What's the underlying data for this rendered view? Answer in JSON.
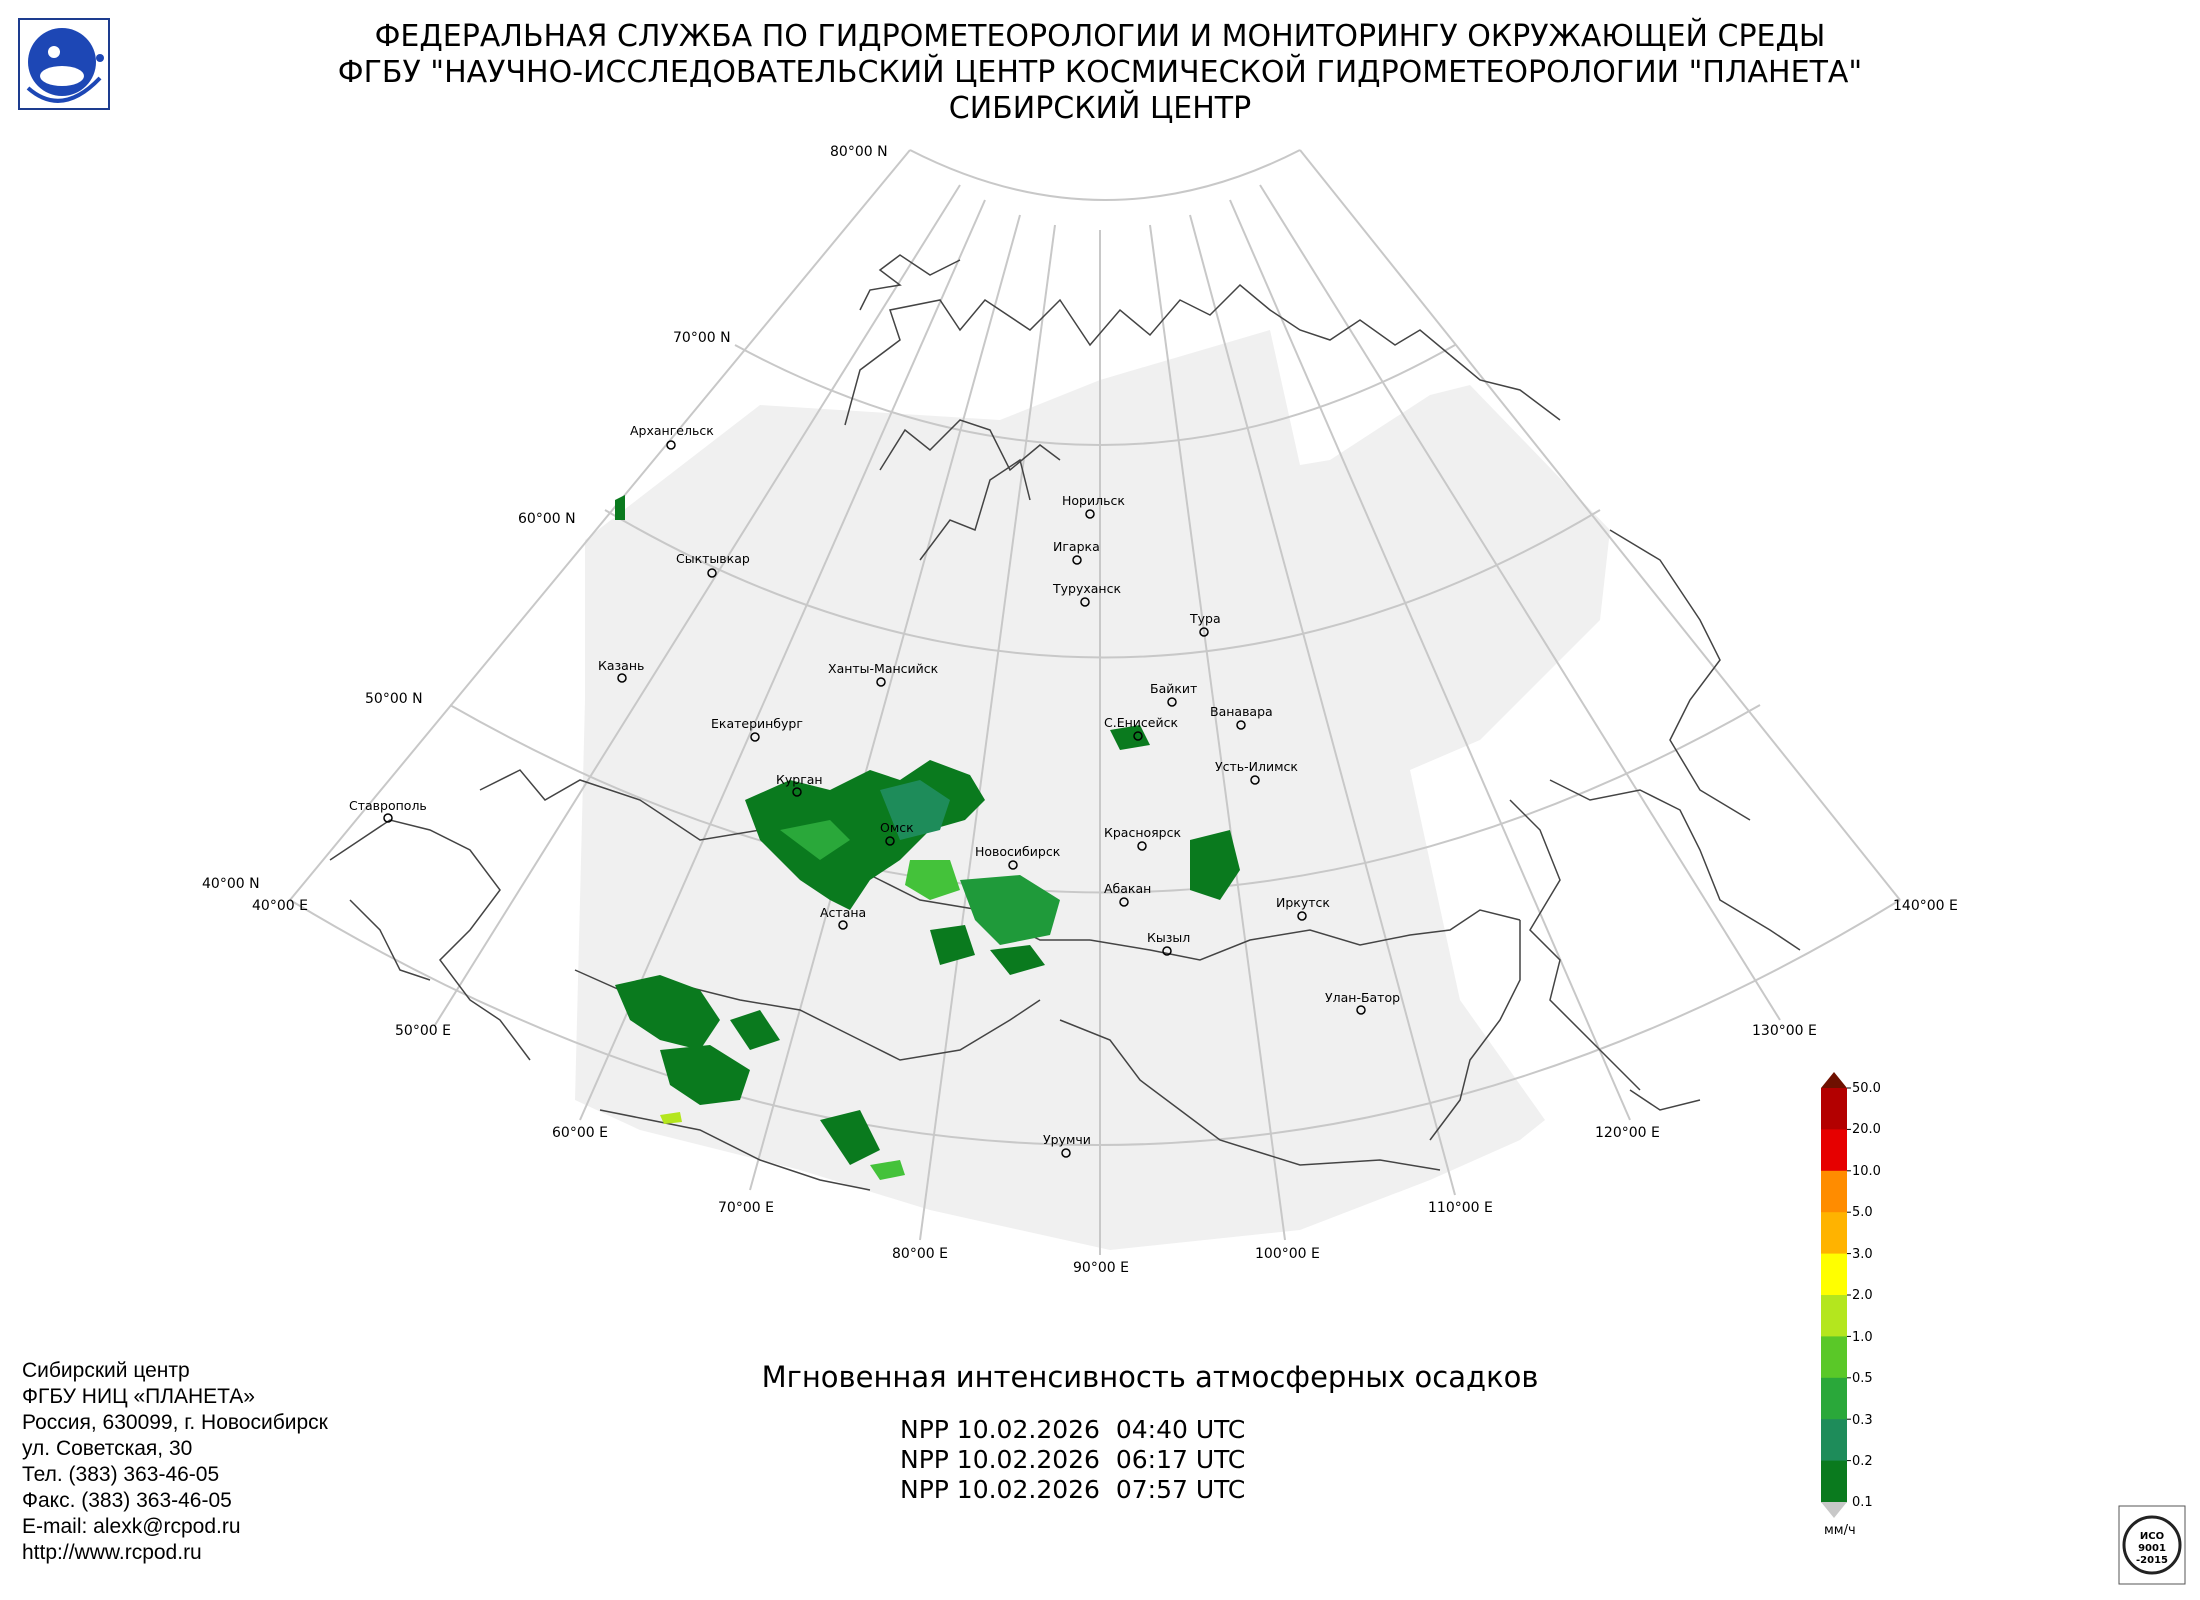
{
  "header": {
    "line1": "ФЕДЕРАЛЬНАЯ СЛУЖБА ПО ГИДРОМЕТЕОРОЛОГИИ И МОНИТОРИНГУ ОКРУЖАЮЩЕЙ СРЕДЫ",
    "line2": "ФГБУ \"НАУЧНО-ИССЛЕДОВАТЕЛЬСКИЙ ЦЕНТР КОСМИЧЕСКОЙ ГИДРОМЕТЕОРОЛОГИИ \"ПЛАНЕТА\"",
    "line3": "СИБИРСКИЙ ЦЕНТР",
    "logo_icon": "roshydromet-logo"
  },
  "map": {
    "latitude_labels": [
      "80°00 N",
      "70°00 N",
      "60°00 N",
      "50°00 N",
      "40°00 N"
    ],
    "longitude_labels": [
      "40°00 E",
      "50°00 E",
      "60°00 E",
      "70°00 E",
      "80°00 E",
      "90°00 E",
      "100°00 E",
      "110°00 E",
      "120°00 E",
      "130°00 E",
      "140°00 E"
    ],
    "cities": [
      "Архангельск",
      "Сыктывкар",
      "Казань",
      "Екатеринбург",
      "Ставрополь",
      "Курган",
      "Омск",
      "Астана",
      "Ханты-Мансийск",
      "Норильск",
      "Игарка",
      "Туруханск",
      "Тура",
      "Байкит",
      "С.Енисейск",
      "Ванавара",
      "Усть-Илимск",
      "Новосибирск",
      "Красноярск",
      "Абакан",
      "Иркутск",
      "Кызыл",
      "Улан-Батор",
      "Урумчи"
    ],
    "colors": {
      "coverage": "#f0f0f0",
      "grid": "#c8c8c8",
      "coast": "#444444",
      "precip_dark": "#0a7a1e",
      "precip_mid": "#1f9a3a",
      "precip_light": "#44c23a"
    }
  },
  "legend": {
    "labels": [
      "50.0",
      "20.0",
      "10.0",
      "5.0",
      "3.0",
      "2.0",
      "1.0",
      "0.5",
      "0.3",
      "0.2",
      "0.1"
    ],
    "unit": "мм/ч",
    "colors": [
      "#b30000",
      "#e60000",
      "#ff8c00",
      "#ffb300",
      "#ffff00",
      "#b4e61e",
      "#5ac828",
      "#2aa83a",
      "#1e8c5a",
      "#0a7a1e"
    ],
    "top_arrow_color": "#6e1000",
    "bottom_arrow_color": "#c8c8c8"
  },
  "contact": {
    "lines": [
      "Сибирский центр",
      "ФГБУ НИЦ «ПЛАНЕТА»",
      "Россия, 630099, г. Новосибирск",
      "ул. Советская, 30",
      "Тел. (383) 363-46-05",
      "Факс. (383) 363-46-05",
      "E-mail: alexk@rcpod.ru",
      "http://www.rcpod.ru"
    ]
  },
  "product": {
    "title": "Мгновенная интенсивность атмосферных осадков",
    "passes": [
      "NPP 10.02.2026  04:40 UTC",
      "NPP 10.02.2026  06:17 UTC",
      "NPP 10.02.2026  07:57 UTC"
    ]
  },
  "iso_badge": {
    "lines": [
      "ИСО",
      "9001",
      "-2015"
    ],
    "icon": "iso-certificate-icon"
  }
}
